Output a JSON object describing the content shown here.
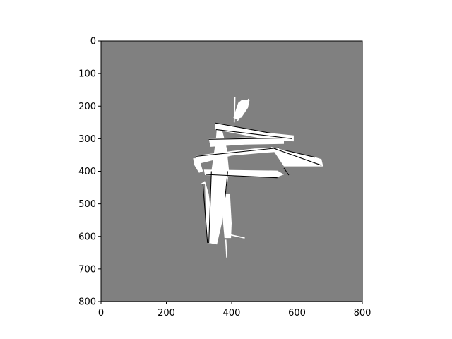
{
  "chart_data": {
    "type": "heatmap",
    "description_kind": "occupancy-grid image (imshow)",
    "xlim": [
      0,
      800
    ],
    "ylim": [
      800,
      0
    ],
    "x_ticks": [
      0,
      200,
      400,
      600,
      800
    ],
    "y_ticks": [
      0,
      100,
      200,
      300,
      400,
      500,
      600,
      700,
      800
    ],
    "colors": {
      "unknown": "#808080",
      "free": "#ffffff",
      "occupied": "#000000",
      "axes": "#000000",
      "figure_background": "#ffffff"
    },
    "free_regions": [
      {
        "name": "top-bar",
        "points": [
          [
            350,
            252
          ],
          [
            350,
            272
          ],
          [
            520,
            305
          ],
          [
            590,
            308
          ],
          [
            590,
            290
          ],
          [
            520,
            283
          ]
        ]
      },
      {
        "name": "middle-bar",
        "points": [
          [
            330,
            300
          ],
          [
            335,
            325
          ],
          [
            440,
            318
          ],
          [
            560,
            316
          ],
          [
            560,
            300
          ],
          [
            440,
            296
          ]
        ]
      },
      {
        "name": "right-arm",
        "points": [
          [
            520,
            325
          ],
          [
            560,
            385
          ],
          [
            680,
            385
          ],
          [
            675,
            363
          ],
          [
            650,
            355
          ],
          [
            560,
            335
          ]
        ]
      },
      {
        "name": "lower-bar",
        "points": [
          [
            290,
            352
          ],
          [
            295,
            378
          ],
          [
            400,
            352
          ],
          [
            480,
            345
          ],
          [
            545,
            340
          ],
          [
            545,
            328
          ],
          [
            470,
            330
          ],
          [
            400,
            338
          ]
        ]
      },
      {
        "name": "bottom-cross",
        "points": [
          [
            315,
            395
          ],
          [
            318,
            412
          ],
          [
            400,
            415
          ],
          [
            540,
            418
          ],
          [
            560,
            410
          ],
          [
            540,
            398
          ],
          [
            400,
            396
          ]
        ]
      },
      {
        "name": "spine",
        "points": [
          [
            355,
            260
          ],
          [
            352,
            300
          ],
          [
            338,
            400
          ],
          [
            335,
            460
          ],
          [
            330,
            550
          ],
          [
            330,
            620
          ],
          [
            355,
            625
          ],
          [
            370,
            560
          ],
          [
            380,
            480
          ],
          [
            392,
            400
          ],
          [
            385,
            330
          ],
          [
            370,
            270
          ]
        ]
      },
      {
        "name": "leg-left",
        "points": [
          [
            303,
            440
          ],
          [
            318,
            440
          ],
          [
            322,
            560
          ],
          [
            326,
            620
          ],
          [
            345,
            622
          ],
          [
            340,
            560
          ],
          [
            330,
            470
          ],
          [
            318,
            430
          ]
        ]
      },
      {
        "name": "leg-right",
        "points": [
          [
            375,
            470
          ],
          [
            395,
            470
          ],
          [
            400,
            560
          ],
          [
            398,
            605
          ],
          [
            378,
            605
          ],
          [
            372,
            540
          ]
        ]
      },
      {
        "name": "upper-spike",
        "points": [
          [
            405,
            235
          ],
          [
            420,
            190
          ],
          [
            430,
            182
          ],
          [
            455,
            182
          ],
          [
            450,
            205
          ],
          [
            430,
            235
          ],
          [
            415,
            240
          ]
        ]
      },
      {
        "name": "left-stub",
        "points": [
          [
            282,
            360
          ],
          [
            300,
            360
          ],
          [
            312,
            400
          ],
          [
            300,
            405
          ],
          [
            285,
            380
          ]
        ]
      }
    ],
    "free_lines": [
      {
        "from": [
          408,
          250
        ],
        "to": [
          410,
          172
        ]
      },
      {
        "from": [
          418,
          245
        ],
        "to": [
          452,
          178
        ]
      },
      {
        "from": [
          382,
          610
        ],
        "to": [
          385,
          665
        ]
      },
      {
        "from": [
          395,
          595
        ],
        "to": [
          440,
          605
        ]
      }
    ],
    "occupied_lines": [
      {
        "from": [
          350,
          252
        ],
        "to": [
          520,
          283
        ]
      },
      {
        "from": [
          352,
          272
        ],
        "to": [
          585,
          300
        ]
      },
      {
        "from": [
          330,
          302
        ],
        "to": [
          560,
          298
        ]
      },
      {
        "from": [
          292,
          354
        ],
        "to": [
          545,
          328
        ]
      },
      {
        "from": [
          322,
          410
        ],
        "to": [
          540,
          420
        ]
      },
      {
        "from": [
          530,
          330
        ],
        "to": [
          675,
          382
        ]
      },
      {
        "from": [
          560,
          335
        ],
        "to": [
          655,
          357
        ]
      },
      {
        "from": [
          338,
          400
        ],
        "to": [
          330,
          620
        ]
      },
      {
        "from": [
          388,
          400
        ],
        "to": [
          380,
          480
        ]
      },
      {
        "from": [
          312,
          440
        ],
        "to": [
          326,
          620
        ]
      },
      {
        "from": [
          560,
          390
        ],
        "to": [
          575,
          412
        ]
      }
    ]
  }
}
